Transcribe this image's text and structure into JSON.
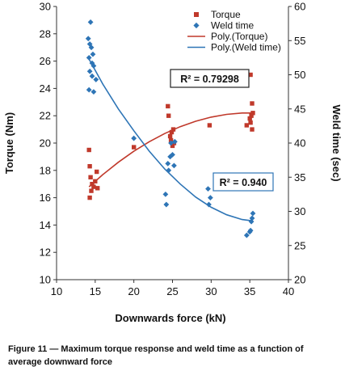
{
  "chart_data": {
    "type": "scatter",
    "xlabel": "Downwards force (kN)",
    "ylabel_left": "Torque (Nm)",
    "ylabel_right": "Weld time (sec)",
    "xlim": [
      10,
      40
    ],
    "ylim_left": [
      10,
      30
    ],
    "ylim_right": [
      20,
      60
    ],
    "x_ticks": [
      10,
      15,
      20,
      25,
      30,
      35,
      40
    ],
    "y_left_ticks": [
      10,
      12,
      14,
      16,
      18,
      20,
      22,
      24,
      26,
      28,
      30
    ],
    "y_right_ticks": [
      20,
      25,
      30,
      35,
      40,
      45,
      50,
      55,
      60
    ],
    "legend_position": "top-right",
    "grid": false,
    "series": [
      {
        "name": "Torque",
        "kind": "scatter",
        "marker": "square",
        "color": "#c0392b",
        "axis": "left",
        "points": [
          [
            14.2,
            19.5
          ],
          [
            14.3,
            18.3
          ],
          [
            14.3,
            16.0
          ],
          [
            14.4,
            17.5
          ],
          [
            14.5,
            16.5
          ],
          [
            14.6,
            17.0
          ],
          [
            14.8,
            16.8
          ],
          [
            15.0,
            17.2
          ],
          [
            15.2,
            17.9
          ],
          [
            15.3,
            16.7
          ],
          [
            20.0,
            19.7
          ],
          [
            24.4,
            22.7
          ],
          [
            24.5,
            22.0
          ],
          [
            24.7,
            20.5
          ],
          [
            24.8,
            20.2
          ],
          [
            24.9,
            20.8
          ],
          [
            25.0,
            19.8
          ],
          [
            25.1,
            21.0
          ],
          [
            25.2,
            20.0
          ],
          [
            29.8,
            21.3
          ],
          [
            34.6,
            21.3
          ],
          [
            35.0,
            21.8
          ],
          [
            35.1,
            25.0
          ],
          [
            35.2,
            22.0
          ],
          [
            35.3,
            22.9
          ],
          [
            35.3,
            21.0
          ],
          [
            35.4,
            22.2
          ],
          [
            35.1,
            21.5
          ]
        ]
      },
      {
        "name": "Weld time",
        "kind": "scatter",
        "marker": "diamond",
        "color": "#2e75b6",
        "axis": "right",
        "points": [
          [
            14.4,
            57.7
          ],
          [
            14.1,
            55.3
          ],
          [
            14.3,
            54.5
          ],
          [
            14.5,
            54.0
          ],
          [
            14.7,
            53.0
          ],
          [
            14.2,
            52.5
          ],
          [
            14.6,
            51.7
          ],
          [
            14.8,
            51.3
          ],
          [
            14.3,
            50.5
          ],
          [
            14.6,
            49.8
          ],
          [
            15.1,
            49.3
          ],
          [
            14.2,
            47.8
          ],
          [
            14.8,
            47.5
          ],
          [
            20.0,
            40.7
          ],
          [
            24.1,
            32.5
          ],
          [
            24.2,
            31.0
          ],
          [
            24.4,
            37.0
          ],
          [
            24.5,
            36.0
          ],
          [
            24.7,
            38.0
          ],
          [
            24.8,
            40.0
          ],
          [
            25.0,
            38.3
          ],
          [
            25.2,
            36.7
          ],
          [
            25.3,
            40.2
          ],
          [
            29.6,
            33.3
          ],
          [
            29.9,
            32.0
          ],
          [
            29.7,
            31.0
          ],
          [
            34.6,
            26.5
          ],
          [
            35.0,
            27.0
          ],
          [
            35.2,
            28.5
          ],
          [
            35.3,
            29.0
          ],
          [
            35.4,
            29.7
          ],
          [
            35.1,
            27.2
          ]
        ]
      },
      {
        "name": "Poly.(Torque)",
        "kind": "trendline",
        "color": "#c0392b",
        "axis": "left",
        "x": [
          14.2,
          16,
          18,
          20,
          22,
          24,
          26,
          28,
          30,
          32,
          34,
          35.4
        ],
        "values": [
          16.8,
          17.7,
          18.6,
          19.4,
          20.1,
          20.7,
          21.2,
          21.6,
          21.9,
          22.1,
          22.2,
          22.2
        ]
      },
      {
        "name": "Poly.(Weld time)",
        "kind": "trendline",
        "color": "#2e75b6",
        "axis": "right",
        "x": [
          14.2,
          16,
          18,
          20,
          22,
          24,
          26,
          28,
          30,
          32,
          34,
          35.4
        ],
        "values": [
          52.3,
          48.6,
          45.0,
          41.8,
          38.8,
          36.2,
          34.0,
          32.1,
          30.6,
          29.5,
          28.8,
          28.6
        ]
      }
    ],
    "annotations": [
      {
        "text": "R² = 0.79298",
        "anchor": "torque-fit"
      },
      {
        "text": "R² = 0.940",
        "anchor": "weld-fit"
      }
    ]
  },
  "caption": "Figure 11 — Maximum torque response and weld time as a function of average downward force"
}
